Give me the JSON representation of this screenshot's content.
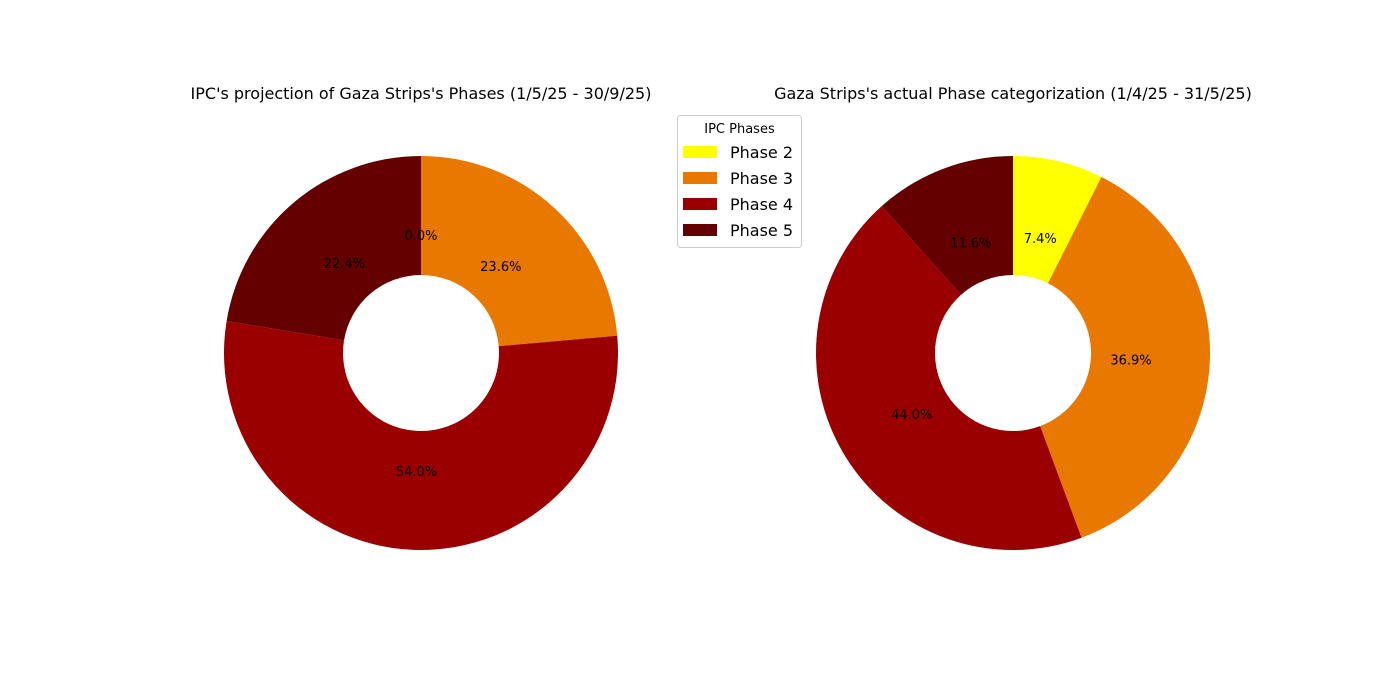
{
  "chart_data": [
    {
      "type": "pie",
      "donut": true,
      "title": "IPC's projection of Gaza Strips's Phases (1/5/25 - 30/9/25)",
      "categories": [
        "Phase 2",
        "Phase 3",
        "Phase 4",
        "Phase 5"
      ],
      "values": [
        0.0,
        23.6,
        54.0,
        22.4
      ],
      "labels": [
        "0.0%",
        "23.6%",
        "54.0%",
        "22.4%"
      ],
      "colors": [
        "#ffff00",
        "#e87800",
        "#9b0000",
        "#640000"
      ]
    },
    {
      "type": "pie",
      "donut": true,
      "title": "Gaza Strips's actual Phase categorization (1/4/25 - 31/5/25)",
      "categories": [
        "Phase 2",
        "Phase 3",
        "Phase 4",
        "Phase 5"
      ],
      "values": [
        7.4,
        36.9,
        44.0,
        11.6
      ],
      "labels": [
        "7.4%",
        "36.9%",
        "44.0%",
        "11.6%"
      ],
      "colors": [
        "#ffff00",
        "#e87800",
        "#9b0000",
        "#640000"
      ]
    }
  ],
  "legend": {
    "title": "IPC Phases",
    "items": [
      {
        "label": "Phase 2",
        "color": "#ffff00"
      },
      {
        "label": "Phase 3",
        "color": "#e87800"
      },
      {
        "label": "Phase 4",
        "color": "#9b0000"
      },
      {
        "label": "Phase 5",
        "color": "#640000"
      }
    ]
  }
}
